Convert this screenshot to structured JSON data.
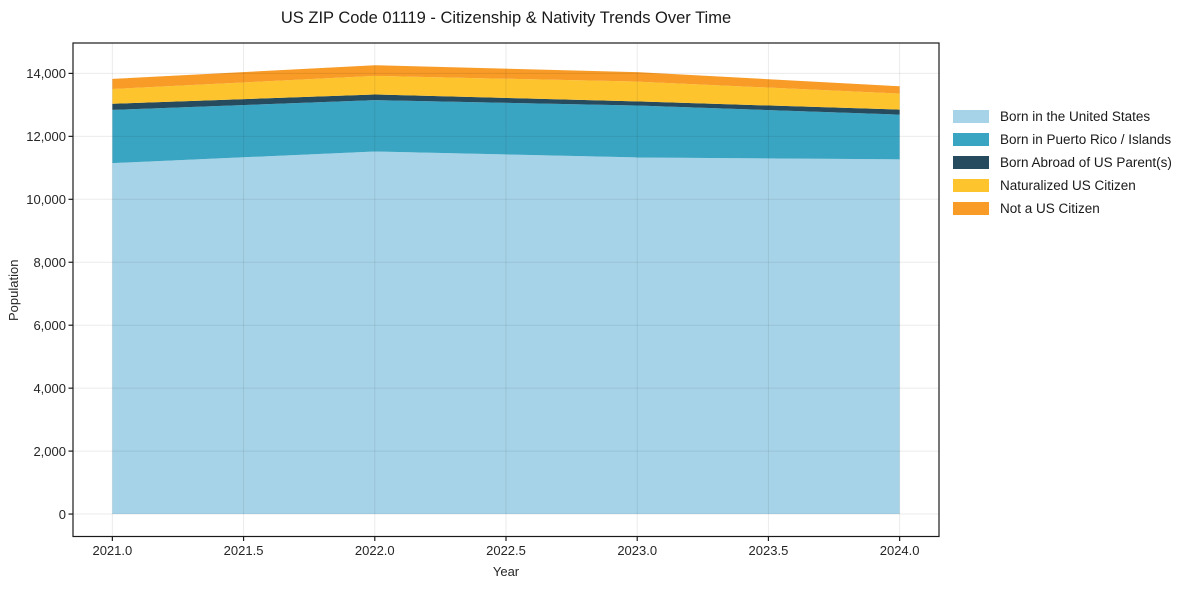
{
  "page": {
    "background_color": "#ffffff"
  },
  "chart_data": {
    "type": "area",
    "stacked": true,
    "title": "US ZIP Code 01119 - Citizenship & Nativity Trends Over Time",
    "xlabel": "Year",
    "ylabel": "Population",
    "x": [
      2021,
      2022,
      2023,
      2024
    ],
    "series": [
      {
        "name": "Born in the United States",
        "color": "#a7d3e8",
        "values": [
          11150,
          11520,
          11330,
          11270
        ]
      },
      {
        "name": "Born in Puerto Rico / Islands",
        "color": "#3aa5c2",
        "values": [
          1690,
          1630,
          1650,
          1420
        ]
      },
      {
        "name": "Born Abroad of US Parent(s)",
        "color": "#264a5e",
        "values": [
          195,
          180,
          130,
          160
        ]
      },
      {
        "name": "Naturalized US Citizen",
        "color": "#fdc42d",
        "values": [
          470,
          590,
          630,
          510
        ]
      },
      {
        "name": "Not a US Citizen",
        "color": "#f89b27",
        "values": [
          320,
          340,
          300,
          230
        ]
      }
    ],
    "totals": [
      13825,
      14260,
      14040,
      13590
    ],
    "x_ticks": {
      "values": [
        2021.0,
        2021.5,
        2022.0,
        2022.5,
        2023.0,
        2023.5,
        2024.0
      ],
      "labels": [
        "2021.0",
        "2021.5",
        "2022.0",
        "2022.5",
        "2023.0",
        "2023.5",
        "2024.0"
      ]
    },
    "y_ticks": {
      "values": [
        0,
        2000,
        4000,
        6000,
        8000,
        10000,
        12000,
        14000
      ],
      "labels": [
        "0",
        "2,000",
        "4,000",
        "6,000",
        "8,000",
        "10,000",
        "12,000",
        "14,000"
      ]
    },
    "xlim": [
      2020.85,
      2024.15
    ],
    "ylim": [
      -713,
      14966
    ],
    "grid": true,
    "legend_position": "right",
    "axis_color": "#1a1a1a",
    "tick_text_color": "#262626",
    "grid_color": "#000000"
  }
}
